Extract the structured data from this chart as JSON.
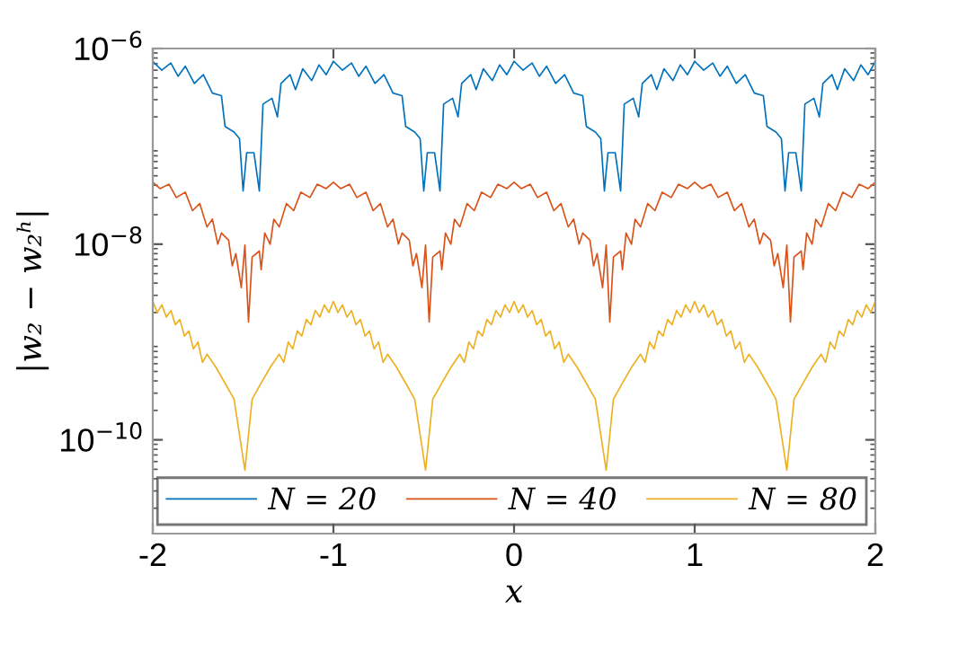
{
  "chart_data": {
    "type": "line",
    "xlabel": "x",
    "ylabel": "|w₂ − w₂ʰ|",
    "log": "y",
    "grid": false,
    "legend": "bottom right",
    "line_style": "solid",
    "marker": "none",
    "xlim": [
      -2,
      2
    ],
    "xticks": [
      -2,
      -1,
      0,
      1,
      2
    ],
    "ylim": [
      1.1e-11,
      1e-06
    ],
    "yticks": [
      {
        "value": 1e-10,
        "label": "10$^{−10}$"
      },
      {
        "value": 1e-08,
        "label": "10$^{−8}$"
      },
      {
        "value": 1e-06,
        "label": "10$^{−6}$"
      }
    ],
    "series": [
      {
        "name": "N = 20",
        "color": "#0072bd",
        "x": [
          -2.0,
          -1.95,
          -1.9,
          -1.86,
          -1.82,
          -1.77,
          -1.72,
          -1.67,
          -1.62,
          -1.6,
          -1.55,
          -1.52,
          -1.5,
          -1.48,
          -1.44,
          -1.41,
          -1.39,
          -1.34,
          -1.31,
          -1.29,
          -1.24,
          -1.21,
          -1.17,
          -1.12,
          -1.08,
          -1.04,
          -1.0,
          -0.95,
          -0.9,
          -0.86,
          -0.82,
          -0.77,
          -0.72,
          -0.67,
          -0.62,
          -0.6,
          -0.55,
          -0.52,
          -0.5,
          -0.48,
          -0.44,
          -0.41,
          -0.39,
          -0.34,
          -0.31,
          -0.29,
          -0.24,
          -0.21,
          -0.17,
          -0.12,
          -0.08,
          -0.04,
          0.0,
          0.05,
          0.1,
          0.14,
          0.18,
          0.23,
          0.28,
          0.33,
          0.38,
          0.4,
          0.45,
          0.48,
          0.5,
          0.52,
          0.56,
          0.59,
          0.61,
          0.66,
          0.69,
          0.71,
          0.76,
          0.79,
          0.83,
          0.88,
          0.92,
          0.96,
          1.0,
          1.05,
          1.1,
          1.14,
          1.18,
          1.23,
          1.28,
          1.33,
          1.38,
          1.4,
          1.45,
          1.48,
          1.5,
          1.52,
          1.56,
          1.59,
          1.61,
          1.66,
          1.69,
          1.71,
          1.76,
          1.79,
          1.83,
          1.88,
          1.92,
          1.96,
          2.0
        ],
        "values": [
          7.4e-07,
          6e-07,
          7.1e-07,
          5.2e-07,
          6.6e-07,
          4.4e-07,
          5.4e-07,
          3.5e-07,
          3.3e-07,
          1.6e-07,
          1.4e-07,
          1.2e-07,
          3.5e-08,
          8.6e-08,
          8.6e-08,
          3.5e-08,
          2.7e-07,
          3.1e-07,
          2e-07,
          4.4e-07,
          5.4e-07,
          3.8e-07,
          6.2e-07,
          4.7e-07,
          6.8e-07,
          5.4e-07,
          7.4e-07,
          6e-07,
          7.1e-07,
          5.2e-07,
          6.6e-07,
          4.4e-07,
          5.4e-07,
          3.5e-07,
          3.3e-07,
          1.6e-07,
          1.4e-07,
          1.2e-07,
          3.5e-08,
          8.6e-08,
          8.6e-08,
          3.5e-08,
          2.7e-07,
          3.1e-07,
          2e-07,
          4.4e-07,
          5.4e-07,
          3.8e-07,
          6.2e-07,
          4.7e-07,
          6.8e-07,
          5.4e-07,
          7.4e-07,
          6e-07,
          7.1e-07,
          5.2e-07,
          6.6e-07,
          4.4e-07,
          5.4e-07,
          3.5e-07,
          3.3e-07,
          1.6e-07,
          1.4e-07,
          1.2e-07,
          3.5e-08,
          8.6e-08,
          8.6e-08,
          3.5e-08,
          2.7e-07,
          3.1e-07,
          2e-07,
          4.4e-07,
          5.4e-07,
          3.8e-07,
          6.2e-07,
          4.7e-07,
          6.8e-07,
          5.4e-07,
          7.4e-07,
          6e-07,
          7.1e-07,
          5.2e-07,
          6.6e-07,
          4.4e-07,
          5.4e-07,
          3.5e-07,
          3.3e-07,
          1.6e-07,
          1.4e-07,
          1.2e-07,
          3.5e-08,
          8.6e-08,
          8.6e-08,
          3.5e-08,
          2.7e-07,
          3.1e-07,
          2e-07,
          4.4e-07,
          5.4e-07,
          3.8e-07,
          6.2e-07,
          4.7e-07,
          6.8e-07,
          5.4e-07,
          7.4e-07
        ]
      },
      {
        "name": "N = 40",
        "color": "#d95319",
        "x": [
          -2,
          -1.96,
          -1.91,
          -1.87,
          -1.82,
          -1.78,
          -1.74,
          -1.7,
          -1.67,
          -1.64,
          -1.62,
          -1.58,
          -1.56,
          -1.54,
          -1.51,
          -1.49,
          -1.47,
          -1.45,
          -1.41,
          -1.4,
          -1.38,
          -1.35,
          -1.33,
          -1.3,
          -1.26,
          -1.22,
          -1.18,
          -1.13,
          -1.09,
          -1.04,
          -1.0,
          -0.96,
          -0.91,
          -0.87,
          -0.82,
          -0.78,
          -0.74,
          -0.7,
          -0.67,
          -0.64,
          -0.62,
          -0.58,
          -0.56,
          -0.54,
          -0.51,
          -0.49,
          -0.47,
          -0.45,
          -0.41,
          -0.4,
          -0.38,
          -0.35,
          -0.33,
          -0.3,
          -0.26,
          -0.22,
          -0.18,
          -0.13,
          -0.09,
          -0.04,
          0,
          0.04,
          0.09,
          0.13,
          0.18,
          0.22,
          0.26,
          0.3,
          0.33,
          0.36,
          0.38,
          0.42,
          0.44,
          0.46,
          0.49,
          0.51,
          0.53,
          0.55,
          0.59,
          0.6,
          0.62,
          0.65,
          0.67,
          0.7,
          0.74,
          0.78,
          0.82,
          0.87,
          0.91,
          0.96,
          1.0,
          1.04,
          1.09,
          1.13,
          1.18,
          1.22,
          1.26,
          1.3,
          1.33,
          1.36,
          1.38,
          1.42,
          1.44,
          1.46,
          1.49,
          1.51,
          1.53,
          1.55,
          1.59,
          1.6,
          1.62,
          1.65,
          1.67,
          1.7,
          1.74,
          1.78,
          1.82,
          1.87,
          1.91,
          1.96,
          2.0
        ],
        "values": [
          4.3e-08,
          3.7e-08,
          4.1e-08,
          3e-08,
          3.4e-08,
          2.2e-08,
          2.6e-08,
          1.5e-08,
          1.8e-08,
          1e-08,
          1.3e-08,
          1.1e-08,
          6e-09,
          8e-09,
          3.6e-09,
          9.8e-09,
          1.6e-09,
          7.4e-09,
          8.5e-09,
          5.5e-09,
          1.3e-08,
          1e-08,
          1.8e-08,
          1.5e-08,
          2.6e-08,
          2.2e-08,
          3.4e-08,
          3e-08,
          4.1e-08,
          3.7e-08,
          4.3e-08,
          3.7e-08,
          4.1e-08,
          3e-08,
          3.4e-08,
          2.2e-08,
          2.6e-08,
          1.5e-08,
          1.8e-08,
          1e-08,
          1.3e-08,
          1.1e-08,
          6e-09,
          8e-09,
          3.6e-09,
          9.8e-09,
          1.6e-09,
          7.4e-09,
          8.5e-09,
          5.5e-09,
          1.3e-08,
          1e-08,
          1.8e-08,
          1.5e-08,
          2.6e-08,
          2.2e-08,
          3.4e-08,
          3e-08,
          4.1e-08,
          3.7e-08,
          4.3e-08,
          3.7e-08,
          4.1e-08,
          3e-08,
          3.4e-08,
          2.2e-08,
          2.6e-08,
          1.5e-08,
          1.8e-08,
          1e-08,
          1.3e-08,
          1.1e-08,
          6e-09,
          8e-09,
          3.6e-09,
          9.8e-09,
          1.6e-09,
          7.4e-09,
          8.5e-09,
          5.5e-09,
          1.3e-08,
          1e-08,
          1.8e-08,
          1.5e-08,
          2.6e-08,
          2.2e-08,
          3.4e-08,
          3e-08,
          4.1e-08,
          3.7e-08,
          4.3e-08,
          3.7e-08,
          4.1e-08,
          3e-08,
          3.4e-08,
          2.2e-08,
          2.6e-08,
          1.5e-08,
          1.8e-08,
          1e-08,
          1.3e-08,
          1.1e-08,
          6e-09,
          8e-09,
          3.6e-09,
          9.8e-09,
          1.6e-09,
          7.4e-09,
          8.5e-09,
          5.5e-09,
          1.3e-08,
          1e-08,
          1.8e-08,
          1.5e-08,
          2.6e-08,
          2.2e-08,
          3.4e-08,
          3e-08,
          4.1e-08,
          3.7e-08,
          4.3e-08
        ]
      },
      {
        "name": "N = 80",
        "color": "#edb120",
        "x": [
          -2,
          -1.975,
          -1.95,
          -1.925,
          -1.9,
          -1.875,
          -1.85,
          -1.825,
          -1.8,
          -1.775,
          -1.75,
          -1.725,
          -1.7,
          -1.65,
          -1.6,
          -1.55,
          -1.49,
          -1.45,
          -1.4,
          -1.35,
          -1.3,
          -1.275,
          -1.25,
          -1.225,
          -1.2,
          -1.175,
          -1.15,
          -1.125,
          -1.1,
          -1.075,
          -1.05,
          -1.025,
          -1,
          -0.975,
          -0.95,
          -0.925,
          -0.9,
          -0.875,
          -0.85,
          -0.825,
          -0.8,
          -0.775,
          -0.75,
          -0.725,
          -0.7,
          -0.65,
          -0.6,
          -0.55,
          -0.49,
          -0.45,
          -0.4,
          -0.35,
          -0.3,
          -0.275,
          -0.25,
          -0.225,
          -0.2,
          -0.175,
          -0.15,
          -0.125,
          -0.1,
          -0.075,
          -0.05,
          -0.025,
          0,
          0.025,
          0.05,
          0.075,
          0.1,
          0.125,
          0.15,
          0.175,
          0.2,
          0.225,
          0.25,
          0.275,
          0.3,
          0.35,
          0.4,
          0.45,
          0.51,
          0.55,
          0.6,
          0.65,
          0.7,
          0.725,
          0.75,
          0.775,
          0.8,
          0.825,
          0.85,
          0.875,
          0.9,
          0.925,
          0.95,
          0.975,
          1,
          1.025,
          1.05,
          1.075,
          1.1,
          1.125,
          1.15,
          1.175,
          1.2,
          1.225,
          1.25,
          1.275,
          1.3,
          1.35,
          1.4,
          1.45,
          1.51,
          1.55,
          1.6,
          1.65,
          1.7,
          1.725,
          1.75,
          1.775,
          1.8,
          1.825,
          1.85,
          1.875,
          1.9,
          1.925,
          1.95,
          1.975,
          2
        ],
        "values": [
          2.6e-09,
          2e-09,
          2.4e-09,
          1.8e-09,
          2.1e-09,
          1.5e-09,
          1.7e-09,
          1.15e-09,
          1.3e-09,
          8.5e-10,
          1e-09,
          6.2e-10,
          7.5e-10,
          5.5e-10,
          3.8e-10,
          2.6e-10,
          4.9e-11,
          2.6e-10,
          3.8e-10,
          5.5e-10,
          7.5e-10,
          6.2e-10,
          1e-09,
          8.5e-10,
          1.3e-09,
          1.15e-09,
          1.7e-09,
          1.5e-09,
          2.1e-09,
          1.8e-09,
          2.4e-09,
          2e-09,
          2.6e-09,
          2e-09,
          2.4e-09,
          1.8e-09,
          2.1e-09,
          1.5e-09,
          1.7e-09,
          1.15e-09,
          1.3e-09,
          8.5e-10,
          1e-09,
          6.2e-10,
          7.5e-10,
          5.5e-10,
          3.8e-10,
          2.6e-10,
          4.9e-11,
          2.6e-10,
          3.8e-10,
          5.5e-10,
          7.5e-10,
          6.2e-10,
          1e-09,
          8.5e-10,
          1.3e-09,
          1.15e-09,
          1.7e-09,
          1.5e-09,
          2.1e-09,
          1.8e-09,
          2.4e-09,
          2e-09,
          2.6e-09,
          2e-09,
          2.4e-09,
          1.8e-09,
          2.1e-09,
          1.5e-09,
          1.7e-09,
          1.15e-09,
          1.3e-09,
          8.5e-10,
          1e-09,
          6.2e-10,
          7.5e-10,
          5.5e-10,
          3.8e-10,
          2.6e-10,
          4.9e-11,
          2.6e-10,
          3.8e-10,
          5.5e-10,
          7.5e-10,
          6.2e-10,
          1e-09,
          8.5e-10,
          1.3e-09,
          1.15e-09,
          1.7e-09,
          1.5e-09,
          2.1e-09,
          1.8e-09,
          2.4e-09,
          2e-09,
          2.6e-09,
          2e-09,
          2.4e-09,
          1.8e-09,
          2.1e-09,
          1.5e-09,
          1.7e-09,
          1.15e-09,
          1.3e-09,
          8.5e-10,
          1e-09,
          6.2e-10,
          7.5e-10,
          5.5e-10,
          3.8e-10,
          2.6e-10,
          4.9e-11,
          2.6e-10,
          3.8e-10,
          5.5e-10,
          7.5e-10,
          6.2e-10,
          1e-09,
          8.5e-10,
          1.3e-09,
          1.15e-09,
          1.7e-09,
          1.5e-09,
          2.1e-09,
          1.8e-09,
          2.4e-09,
          2e-09,
          2.6e-09
        ]
      }
    ]
  }
}
